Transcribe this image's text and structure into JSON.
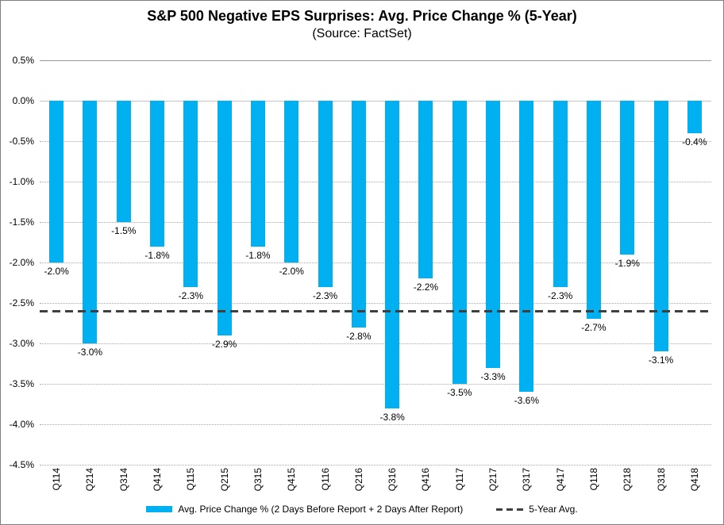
{
  "header": {
    "title": "S&P 500 Negative EPS Surprises: Avg. Price Change % (5-Year)",
    "subtitle": "(Source: FactSet)"
  },
  "chart_data": {
    "type": "bar",
    "title": "S&P 500 Negative EPS Surprises: Avg. Price Change % (5-Year)",
    "subtitle": "(Source: FactSet)",
    "categories": [
      "Q114",
      "Q214",
      "Q314",
      "Q414",
      "Q115",
      "Q215",
      "Q315",
      "Q415",
      "Q116",
      "Q216",
      "Q316",
      "Q416",
      "Q117",
      "Q217",
      "Q317",
      "Q417",
      "Q118",
      "Q218",
      "Q318",
      "Q418"
    ],
    "series": [
      {
        "name": "Avg. Price Change % (2 Days Before Report + 2 Days After Report)",
        "values": [
          -2.0,
          -3.0,
          -1.5,
          -1.8,
          -2.3,
          -2.9,
          -1.8,
          -2.0,
          -2.3,
          -2.8,
          -3.8,
          -2.2,
          -3.5,
          -3.3,
          -3.6,
          -2.3,
          -2.7,
          -1.9,
          -3.1,
          -0.4
        ],
        "data_labels": [
          "-2.0%",
          "-3.0%",
          "-1.5%",
          "-1.8%",
          "-2.3%",
          "-2.9%",
          "-1.8%",
          "-2.0%",
          "-2.3%",
          "-2.8%",
          "-3.8%",
          "-2.2%",
          "-3.5%",
          "-3.3%",
          "-3.6%",
          "-2.3%",
          "-2.7%",
          "-1.9%",
          "-3.1%",
          "-0.4%"
        ],
        "color": "#00b0f0"
      }
    ],
    "reference_line": {
      "name": "5-Year Avg.",
      "value": -2.6,
      "style": "dashed",
      "color": "#3f3f3f"
    },
    "y_axis": {
      "min": -4.5,
      "max": 0.5,
      "step": 0.5,
      "tick_labels": [
        "0.5%",
        "0.0%",
        "-0.5%",
        "-1.0%",
        "-1.5%",
        "-2.0%",
        "-2.5%",
        "-3.0%",
        "-3.5%",
        "-4.0%",
        "-4.5%"
      ]
    },
    "grid": true,
    "legend_position": "bottom",
    "legend": {
      "bar_label": "Avg. Price Change % (2 Days Before Report + 2 Days After Report)",
      "line_label": "5-Year Avg."
    }
  },
  "colors": {
    "bar": "#00b0f0",
    "reference_line": "#3f3f3f",
    "gridline": "#a6a6a6",
    "text": "#000000",
    "frame_border": "#7f7f7f"
  }
}
